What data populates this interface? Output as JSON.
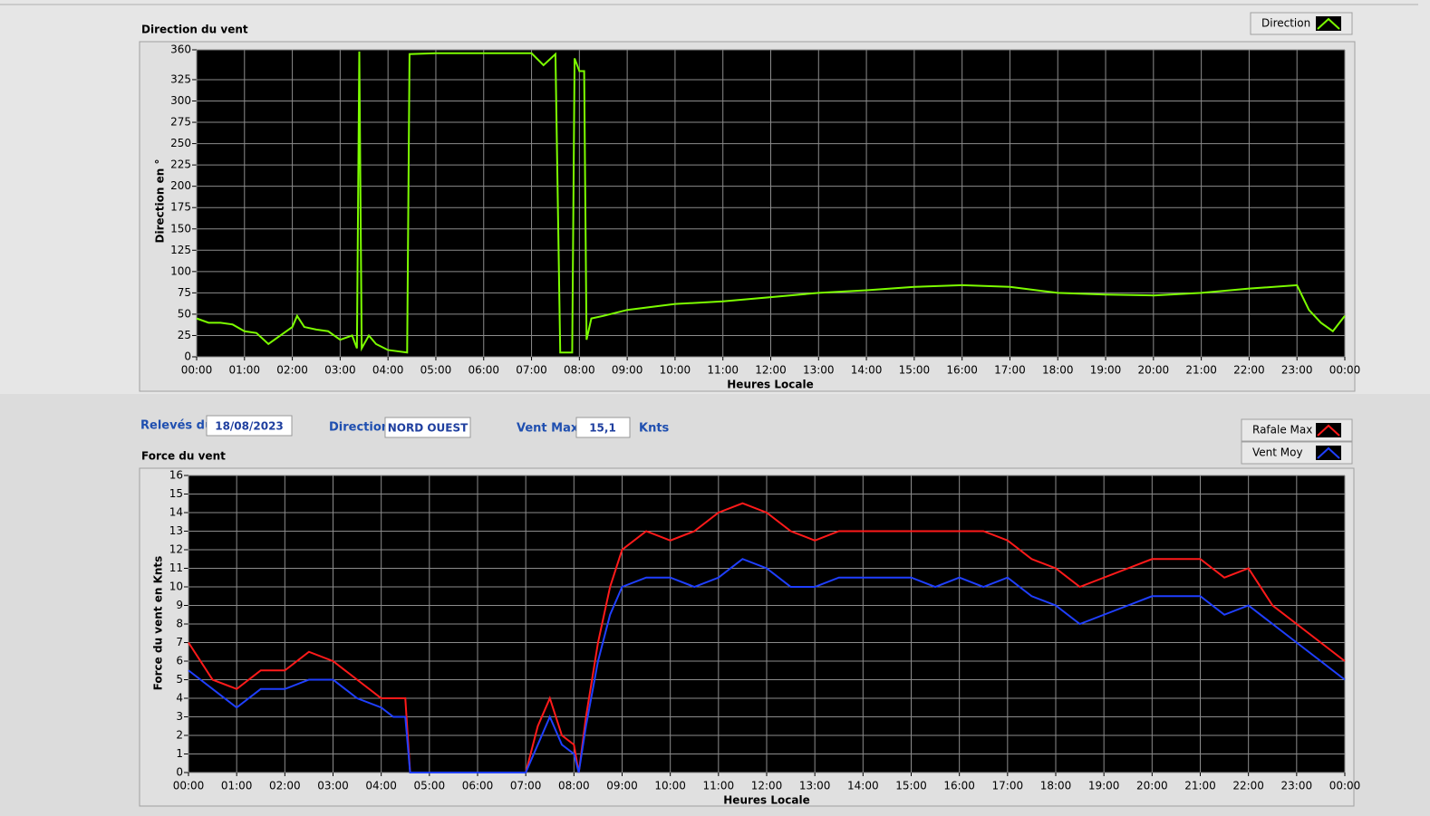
{
  "chart_data": [
    {
      "type": "line",
      "title": "Direction du vent",
      "x_label": "Heures Locale",
      "y_label": "Direction en °",
      "x": [
        0,
        0.25,
        0.5,
        0.75,
        1,
        1.25,
        1.5,
        1.75,
        2,
        2.1,
        2.25,
        2.5,
        2.75,
        3,
        3.25,
        3.35,
        3.4,
        3.45,
        3.6,
        3.75,
        4,
        4.4,
        4.45,
        5,
        6,
        7,
        7.25,
        7.5,
        7.6,
        7.85,
        7.9,
        8,
        8.1,
        8.15,
        8.25,
        8.5,
        9,
        10,
        11,
        12,
        13,
        14,
        15,
        16,
        17,
        18,
        19,
        20,
        21,
        22,
        23,
        23.25,
        23.5,
        23.75,
        24
      ],
      "series": [
        {
          "name": "Direction",
          "color": "#7cfc00",
          "values": [
            45,
            40,
            40,
            38,
            30,
            28,
            15,
            25,
            35,
            48,
            35,
            32,
            30,
            20,
            25,
            10,
            358,
            10,
            25,
            15,
            8,
            5,
            355,
            356,
            356,
            356,
            342,
            355,
            5,
            5,
            350,
            335,
            335,
            20,
            45,
            48,
            55,
            62,
            65,
            70,
            75,
            78,
            82,
            84,
            82,
            75,
            73,
            72,
            75,
            80,
            84,
            55,
            40,
            30,
            48
          ]
        }
      ],
      "xlim": [
        0,
        24
      ],
      "xticks": [
        {
          "value": 0,
          "label": "00:00"
        },
        {
          "value": 1,
          "label": "01:00"
        },
        {
          "value": 2,
          "label": "02:00"
        },
        {
          "value": 3,
          "label": "03:00"
        },
        {
          "value": 4,
          "label": "04:00"
        },
        {
          "value": 5,
          "label": "05:00"
        },
        {
          "value": 6,
          "label": "06:00"
        },
        {
          "value": 7,
          "label": "07:00"
        },
        {
          "value": 8,
          "label": "08:00"
        },
        {
          "value": 9,
          "label": "09:00"
        },
        {
          "value": 10,
          "label": "10:00"
        },
        {
          "value": 11,
          "label": "11:00"
        },
        {
          "value": 12,
          "label": "12:00"
        },
        {
          "value": 13,
          "label": "13:00"
        },
        {
          "value": 14,
          "label": "14:00"
        },
        {
          "value": 15,
          "label": "15:00"
        },
        {
          "value": 16,
          "label": "16:00"
        },
        {
          "value": 17,
          "label": "17:00"
        },
        {
          "value": 18,
          "label": "18:00"
        },
        {
          "value": 19,
          "label": "19:00"
        },
        {
          "value": 20,
          "label": "20:00"
        },
        {
          "value": 21,
          "label": "21:00"
        },
        {
          "value": 22,
          "label": "22:00"
        },
        {
          "value": 23,
          "label": "23:00"
        },
        {
          "value": 24,
          "label": "00:00"
        }
      ],
      "ylim": [
        0,
        360
      ],
      "yticks": [
        0,
        25,
        50,
        75,
        100,
        125,
        150,
        175,
        200,
        225,
        250,
        275,
        300,
        325,
        360
      ],
      "grid": true
    },
    {
      "type": "line",
      "title": "Force du vent",
      "x_label": "Heures Locale",
      "y_label": "Force du vent en Knts",
      "x": [
        0,
        0.5,
        1,
        1.5,
        2,
        2.5,
        3,
        3.5,
        4,
        4.25,
        4.5,
        4.6,
        5,
        6,
        7,
        7.25,
        7.5,
        7.75,
        8,
        8.1,
        8.25,
        8.5,
        8.75,
        9,
        9.5,
        10,
        10.5,
        11,
        11.5,
        12,
        12.5,
        13,
        13.5,
        14,
        14.5,
        15,
        15.5,
        16,
        16.5,
        17,
        17.5,
        18,
        18.5,
        19,
        19.5,
        20,
        20.5,
        21,
        21.5,
        22,
        22.5,
        23,
        23.5,
        24
      ],
      "series": [
        {
          "name": "Rafale Max",
          "color": "#ff1a1a",
          "values": [
            7,
            5,
            4.5,
            5.5,
            5.5,
            6.5,
            6,
            5,
            4,
            4,
            4,
            0,
            0,
            0,
            0,
            2.5,
            4,
            2,
            1.5,
            0,
            3,
            7,
            10,
            12,
            13,
            12.5,
            13,
            14,
            14.5,
            14,
            13,
            12.5,
            13,
            13,
            13,
            13,
            13,
            13,
            13,
            12.5,
            11.5,
            11,
            10,
            10.5,
            11,
            11.5,
            11.5,
            11.5,
            10.5,
            11,
            9,
            8,
            7,
            6
          ]
        },
        {
          "name": "Vent Moy",
          "color": "#1f3fff",
          "values": [
            5.5,
            4.5,
            3.5,
            4.5,
            4.5,
            5,
            5,
            4,
            3.5,
            3,
            3,
            0,
            0,
            0,
            0,
            1.5,
            3,
            1.5,
            1,
            0,
            2.5,
            6,
            8.5,
            10,
            10.5,
            10.5,
            10,
            10.5,
            11.5,
            11,
            10,
            10,
            10.5,
            10.5,
            10.5,
            10.5,
            10,
            10.5,
            10,
            10.5,
            9.5,
            9,
            8,
            8.5,
            9,
            9.5,
            9.5,
            9.5,
            8.5,
            9,
            8,
            7,
            6,
            5
          ]
        }
      ],
      "xlim": [
        0,
        24
      ],
      "xticks": [
        {
          "value": 0,
          "label": "00:00"
        },
        {
          "value": 1,
          "label": "01:00"
        },
        {
          "value": 2,
          "label": "02:00"
        },
        {
          "value": 3,
          "label": "03:00"
        },
        {
          "value": 4,
          "label": "04:00"
        },
        {
          "value": 5,
          "label": "05:00"
        },
        {
          "value": 6,
          "label": "06:00"
        },
        {
          "value": 7,
          "label": "07:00"
        },
        {
          "value": 8,
          "label": "08:00"
        },
        {
          "value": 9,
          "label": "09:00"
        },
        {
          "value": 10,
          "label": "10:00"
        },
        {
          "value": 11,
          "label": "11:00"
        },
        {
          "value": 12,
          "label": "12:00"
        },
        {
          "value": 13,
          "label": "13:00"
        },
        {
          "value": 14,
          "label": "14:00"
        },
        {
          "value": 15,
          "label": "15:00"
        },
        {
          "value": 16,
          "label": "16:00"
        },
        {
          "value": 17,
          "label": "17:00"
        },
        {
          "value": 18,
          "label": "18:00"
        },
        {
          "value": 19,
          "label": "19:00"
        },
        {
          "value": 20,
          "label": "20:00"
        },
        {
          "value": 21,
          "label": "21:00"
        },
        {
          "value": 22,
          "label": "22:00"
        },
        {
          "value": 23,
          "label": "23:00"
        },
        {
          "value": 24,
          "label": "00:00"
        }
      ],
      "ylim": [
        0,
        16
      ],
      "yticks": [
        0,
        1,
        2,
        3,
        4,
        5,
        6,
        7,
        8,
        9,
        10,
        11,
        12,
        13,
        14,
        15,
        16
      ],
      "grid": true
    }
  ],
  "controls": {
    "date_label": "Relevés du",
    "date": "18/08/2023",
    "direction_label": "Direction",
    "direction": "NORD OUEST",
    "max_label": "Vent Max",
    "max": "15,1",
    "max_unit": "Knts"
  }
}
